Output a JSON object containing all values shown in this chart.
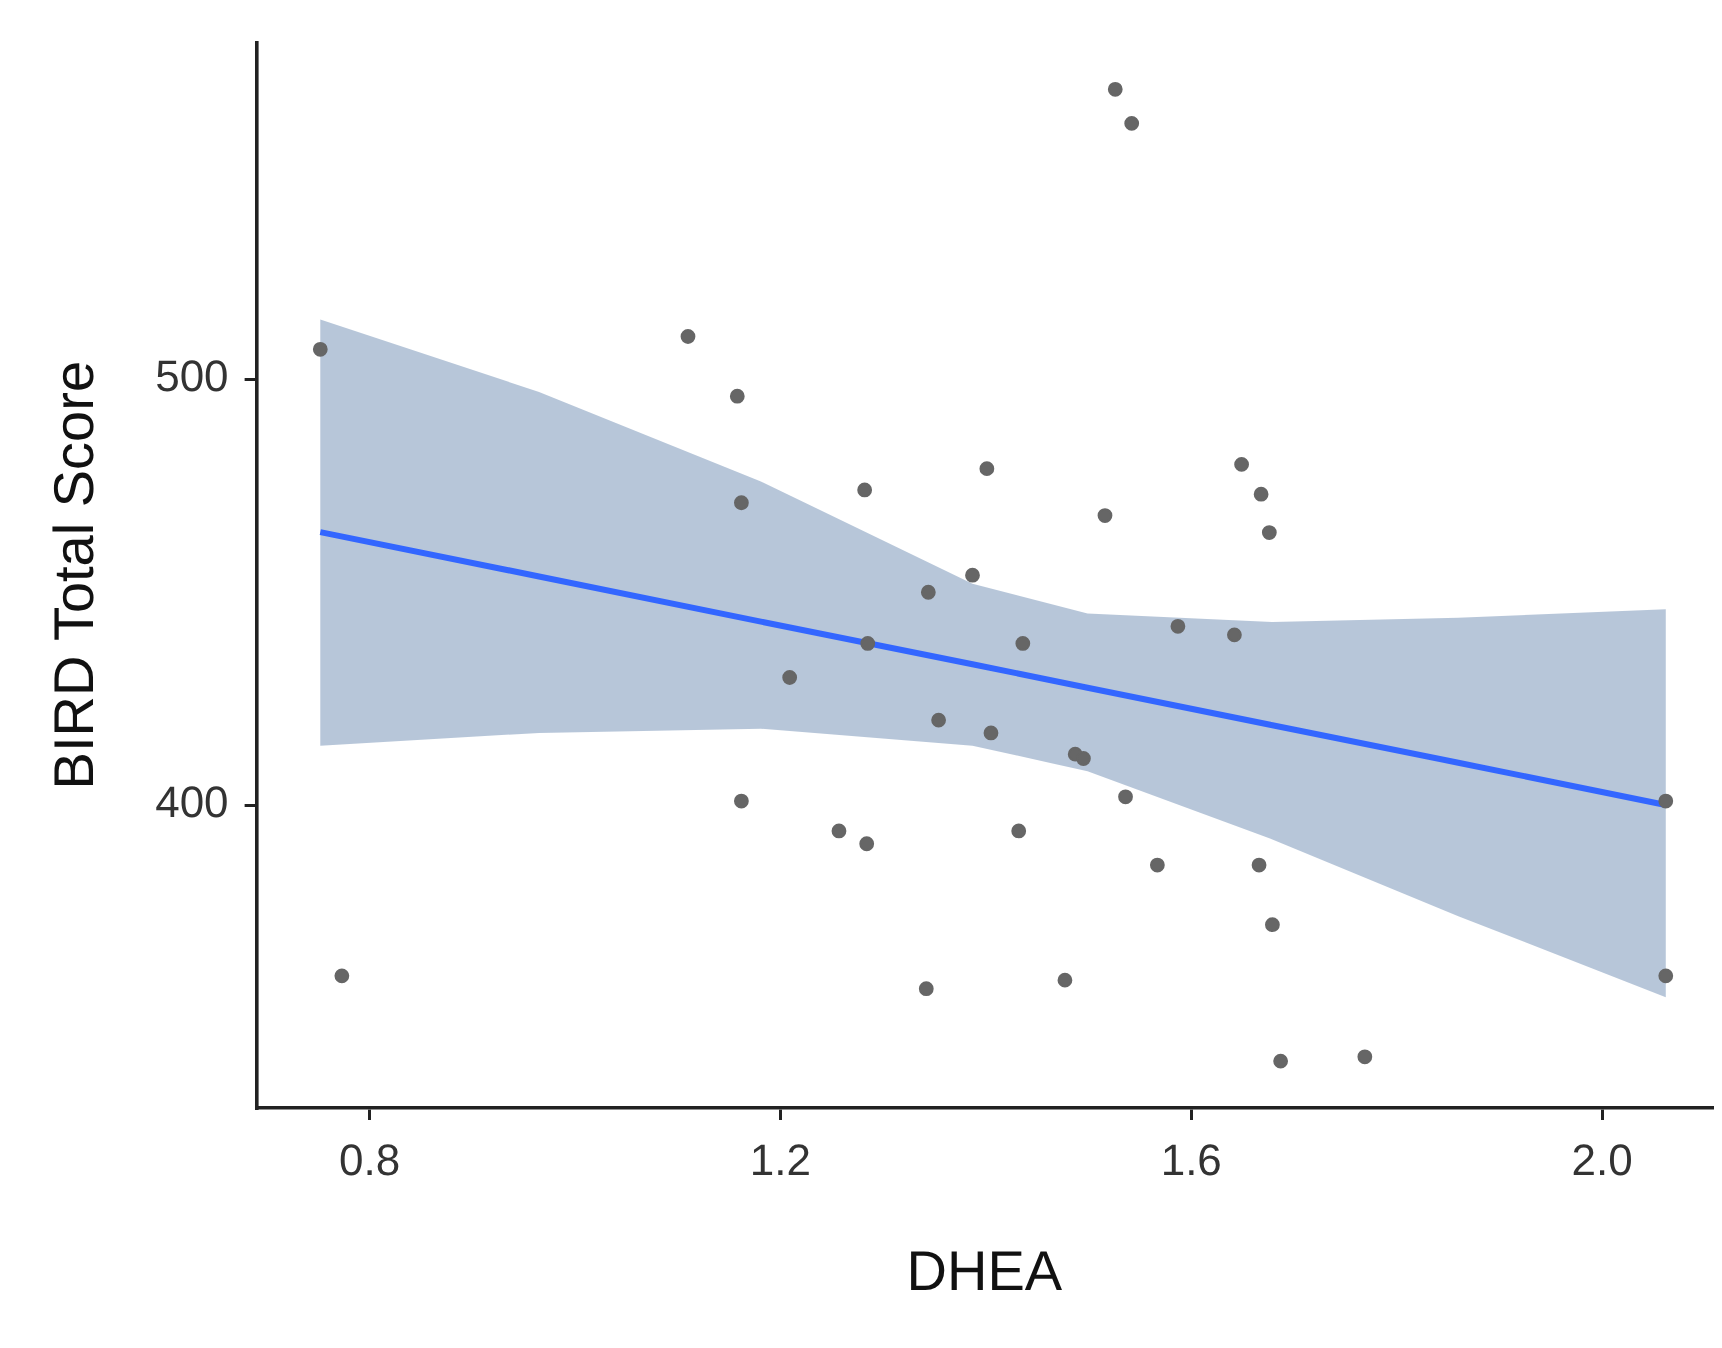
{
  "chart_data": {
    "type": "scatter",
    "xlabel": "DHEA",
    "ylabel": "BIRD Total Score",
    "xlim": [
      0.69,
      2.107
    ],
    "ylim": [
      329,
      579
    ],
    "xticks": [
      0.8,
      1.2,
      1.6,
      {
        "value": 2,
        "label": "2.0"
      }
    ],
    "yticks": [
      400,
      500
    ],
    "grid": false,
    "legend": false,
    "marker": "circle",
    "series": [
      {
        "color": "#666666",
        "x": [
          0.752,
          0.773,
          1.11,
          1.158,
          1.162,
          1.282,
          1.344,
          1.285,
          1.209,
          1.354,
          1.162,
          1.257,
          1.284,
          1.342,
          1.387,
          1.526,
          1.542,
          1.401,
          1.649,
          1.668,
          1.516,
          1.676,
          1.587,
          1.642,
          1.436,
          1.405,
          1.487,
          1.495,
          1.536,
          1.432,
          1.567,
          1.666,
          1.679,
          1.477,
          1.687,
          1.769,
          2.062,
          2.062
        ],
        "values": [
          507,
          360,
          510,
          496,
          471,
          474,
          450,
          438,
          430,
          420,
          401,
          394,
          391,
          357,
          454,
          568,
          560,
          479,
          480,
          473,
          468,
          464,
          442,
          440,
          438,
          417,
          412,
          411,
          402,
          394,
          386,
          386,
          372,
          359,
          340,
          341,
          401,
          360
        ]
      },
      {
        "type": "line",
        "color": "#3366ff",
        "marker": "none",
        "line_style": "solid",
        "x": [
          0.752,
          0.965,
          1.181,
          1.387,
          1.499,
          1.679,
          1.86,
          2.062
        ],
        "values": [
          464.1,
          453.7,
          443.1,
          433.1,
          427.6,
          418.8,
          410,
          400.1
        ],
        "lower": [
          414,
          417,
          418,
          414,
          408,
          392,
          374,
          355
        ],
        "upper": [
          514,
          497,
          476,
          452,
          445,
          443,
          444,
          446
        ]
      }
    ]
  }
}
